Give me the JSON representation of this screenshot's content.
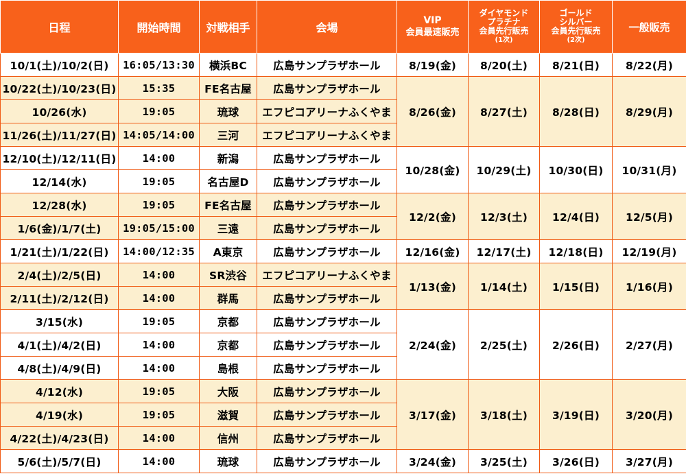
{
  "headers": {
    "date": "日程",
    "start": "開始時間",
    "opponent": "対戦相手",
    "venue": "会場",
    "vip": [
      "VIP",
      "会員最速販売"
    ],
    "diamond": [
      "ダイヤモンド",
      "プラチナ",
      "会員先行販売",
      "(1次)"
    ],
    "gold": [
      "ゴールド",
      "シルバー",
      "会員先行販売",
      "(2次)"
    ],
    "general": "一般販売"
  },
  "rows": [
    {
      "date": "10/1(土)/10/2(日)",
      "time": "16:05/13:30",
      "opp": "横浜BC",
      "venue": "広島サンプラザホール"
    },
    {
      "date": "10/22(土)/10/23(日)",
      "time": "15:35",
      "opp": "FE名古屋",
      "venue": "広島サンプラザホール"
    },
    {
      "date": "10/26(水)",
      "time": "19:05",
      "opp": "琉球",
      "venue": "エフピコアリーナふくやま"
    },
    {
      "date": "11/26(土)/11/27(日)",
      "time": "14:05/14:00",
      "opp": "三河",
      "venue": "エフピコアリーナふくやま"
    },
    {
      "date": "12/10(土)/12/11(日)",
      "time": "14:00",
      "opp": "新潟",
      "venue": "広島サンプラザホール"
    },
    {
      "date": "12/14(水)",
      "time": "19:05",
      "opp": "名古屋D",
      "venue": "広島サンプラザホール"
    },
    {
      "date": "12/28(水)",
      "time": "19:05",
      "opp": "FE名古屋",
      "venue": "広島サンプラザホール"
    },
    {
      "date": "1/6(金)/1/7(土)",
      "time": "19:05/15:00",
      "opp": "三遠",
      "venue": "広島サンプラザホール"
    },
    {
      "date": "1/21(土)/1/22(日)",
      "time": "14:00/12:35",
      "opp": "A東京",
      "venue": "広島サンプラザホール"
    },
    {
      "date": "2/4(土)/2/5(日)",
      "time": "14:00",
      "opp": "SR渋谷",
      "venue": "エフピコアリーナふくやま"
    },
    {
      "date": "2/11(土)/2/12(日)",
      "time": "14:00",
      "opp": "群馬",
      "venue": "広島サンプラザホール"
    },
    {
      "date": "3/15(水)",
      "time": "19:05",
      "opp": "京都",
      "venue": "広島サンプラザホール"
    },
    {
      "date": "4/1(土)/4/2(日)",
      "time": "14:00",
      "opp": "京都",
      "venue": "広島サンプラザホール"
    },
    {
      "date": "4/8(土)/4/9(日)",
      "time": "14:00",
      "opp": "島根",
      "venue": "広島サンプラザホール"
    },
    {
      "date": "4/12(水)",
      "time": "19:05",
      "opp": "大阪",
      "venue": "広島サンプラザホール"
    },
    {
      "date": "4/19(水)",
      "time": "19:05",
      "opp": "滋賀",
      "venue": "広島サンプラザホール"
    },
    {
      "date": "4/22(土)/4/23(日)",
      "time": "14:00",
      "opp": "信州",
      "venue": "広島サンプラザホール"
    },
    {
      "date": "5/6(土)/5/7(日)",
      "time": "14:00",
      "opp": "琉球",
      "venue": "広島サンプラザホール"
    }
  ],
  "sales": [
    {
      "vip": "8/19(金)",
      "diamond": "8/20(土)",
      "gold": "8/21(日)",
      "general": "8/22(月)"
    },
    {
      "vip": "8/26(金)",
      "diamond": "8/27(土)",
      "gold": "8/28(日)",
      "general": "8/29(月)"
    },
    {
      "vip": "10/28(金)",
      "diamond": "10/29(土)",
      "gold": "10/30(日)",
      "general": "10/31(月)"
    },
    {
      "vip": "12/2(金)",
      "diamond": "12/3(土)",
      "gold": "12/4(日)",
      "general": "12/5(月)"
    },
    {
      "vip": "12/16(金)",
      "diamond": "12/17(土)",
      "gold": "12/18(日)",
      "general": "12/19(月)"
    },
    {
      "vip": "1/13(金)",
      "diamond": "1/14(土)",
      "gold": "1/15(日)",
      "general": "1/16(月)"
    },
    {
      "vip": "2/24(金)",
      "diamond": "2/25(土)",
      "gold": "2/26(日)",
      "general": "2/27(月)"
    },
    {
      "vip": "3/17(金)",
      "diamond": "3/18(土)",
      "gold": "3/19(日)",
      "general": "3/20(月)"
    },
    {
      "vip": "3/24(金)",
      "diamond": "3/25(土)",
      "gold": "3/26(日)",
      "general": "3/27(月)"
    }
  ],
  "colors": {
    "header_bg": "#f8611b",
    "border": "#f05a13",
    "band": "#fcefcf"
  }
}
